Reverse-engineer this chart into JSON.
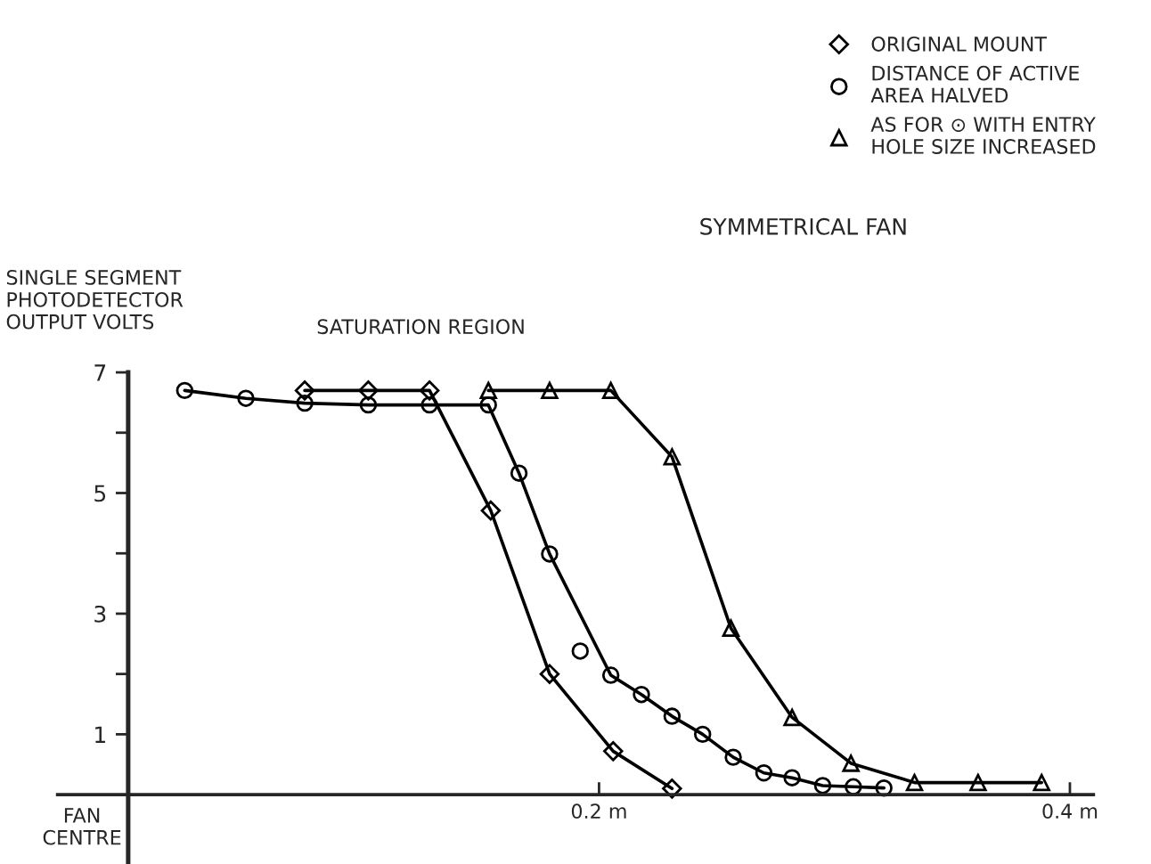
{
  "chart_data": {
    "type": "line",
    "title": "SYMMETRICAL FAN",
    "ylabel": "SINGLE SEGMENT\nPHOTODETECTOR\nOUTPUT VOLTS",
    "annotations": [
      "SATURATION REGION",
      "FAN\nCENTRE"
    ],
    "xlim": [
      -0.03,
      0.41
    ],
    "ylim": [
      -1.15,
      7
    ],
    "xticks": [
      {
        "value": 0.2,
        "label": "0.2 m"
      },
      {
        "value": 0.4,
        "label": "0.4 m"
      }
    ],
    "yticks": [
      1,
      {
        "value": 2,
        "label": null
      },
      3,
      {
        "value": 4,
        "label": null
      },
      5,
      {
        "value": 6,
        "label": null
      },
      7
    ],
    "legend": "top right",
    "grid": false,
    "series": [
      {
        "name": "ORIGINAL MOUNT",
        "color": "#000000",
        "marker": "diamond",
        "x": [
          0.075,
          0.102,
          0.128,
          0.154,
          0.179,
          0.206,
          0.231
        ],
        "values": [
          6.7,
          6.7,
          6.7,
          4.71,
          2.0,
          0.72,
          0.1
        ]
      },
      {
        "name": "DISTANCE OF ACTIVE\nAREA HALVED",
        "color": "#000000",
        "marker": "circle",
        "x": [
          0.024,
          0.05,
          0.075,
          0.102,
          0.128,
          0.153,
          0.166,
          0.179,
          0.205,
          0.218,
          0.231,
          0.244,
          0.257,
          0.27,
          0.282,
          0.295,
          0.308,
          0.321
        ],
        "values": [
          6.7,
          6.57,
          6.49,
          6.46,
          6.46,
          6.46,
          5.33,
          3.99,
          1.98,
          1.66,
          1.3,
          1.0,
          0.62,
          0.36,
          0.28,
          0.15,
          0.13,
          0.11
        ]
      },
      {
        "type": "scatter",
        "color": "#000000",
        "marker": "circle",
        "x": [
          0.192
        ],
        "values": [
          2.38
        ]
      },
      {
        "name": "AS FOR ⊙ WITH ENTRY\nHOLE SIZE INCREASED",
        "color": "#000000",
        "marker": "triangle",
        "x": [
          0.153,
          0.179,
          0.205,
          0.231,
          0.256,
          0.282,
          0.307,
          0.334,
          0.361,
          0.388
        ],
        "values": [
          6.7,
          6.7,
          6.7,
          5.6,
          2.76,
          1.28,
          0.52,
          0.2,
          0.2,
          0.2
        ]
      }
    ]
  }
}
